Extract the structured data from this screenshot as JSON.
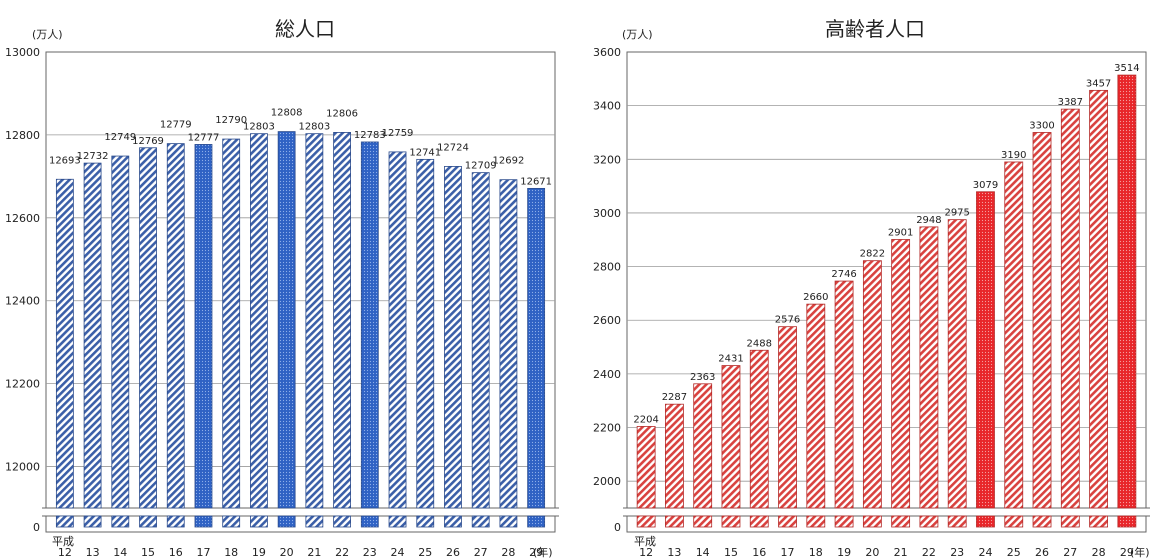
{
  "chart_data": [
    {
      "type": "bar",
      "title": "総人口",
      "unit_label": "(万人)",
      "era_label": "平成",
      "year_suffix": "(年)",
      "categories": [
        "12",
        "13",
        "14",
        "15",
        "16",
        "17",
        "18",
        "19",
        "20",
        "21",
        "22",
        "23",
        "24",
        "25",
        "26",
        "27",
        "28",
        "29"
      ],
      "values": [
        12693,
        12732,
        12749,
        12769,
        12779,
        12777,
        12790,
        12803,
        12808,
        12803,
        12806,
        12783,
        12759,
        12741,
        12724,
        12709,
        12692,
        12671
      ],
      "yticks": [
        "0",
        "12000",
        "12200",
        "12400",
        "12600",
        "12800",
        "13000"
      ],
      "ylim": [
        11900,
        13000
      ],
      "axis_break": true,
      "grid": true,
      "colors": {
        "bar": "#3b5fa8",
        "bar_highlight": "#2f62c4"
      },
      "highlight": [
        "17",
        "20",
        "23",
        "29"
      ]
    },
    {
      "type": "bar",
      "title": "高齢者人口",
      "unit_label": "(万人)",
      "era_label": "平成",
      "year_suffix": "(年)",
      "categories": [
        "12",
        "13",
        "14",
        "15",
        "16",
        "17",
        "18",
        "19",
        "20",
        "21",
        "22",
        "23",
        "24",
        "25",
        "26",
        "27",
        "28",
        "29"
      ],
      "values": [
        2204,
        2287,
        2363,
        2431,
        2488,
        2576,
        2660,
        2746,
        2822,
        2901,
        2948,
        2975,
        3079,
        3190,
        3300,
        3387,
        3457,
        3514
      ],
      "yticks": [
        "0",
        "2000",
        "2200",
        "2400",
        "2600",
        "2800",
        "3000",
        "3200",
        "3400",
        "3600"
      ],
      "ylim": [
        1900,
        3600
      ],
      "axis_break": true,
      "grid": true,
      "colors": {
        "bar": "#d9423f",
        "bar_highlight": "#e8262a"
      },
      "highlight": [
        "24",
        "29"
      ]
    }
  ]
}
